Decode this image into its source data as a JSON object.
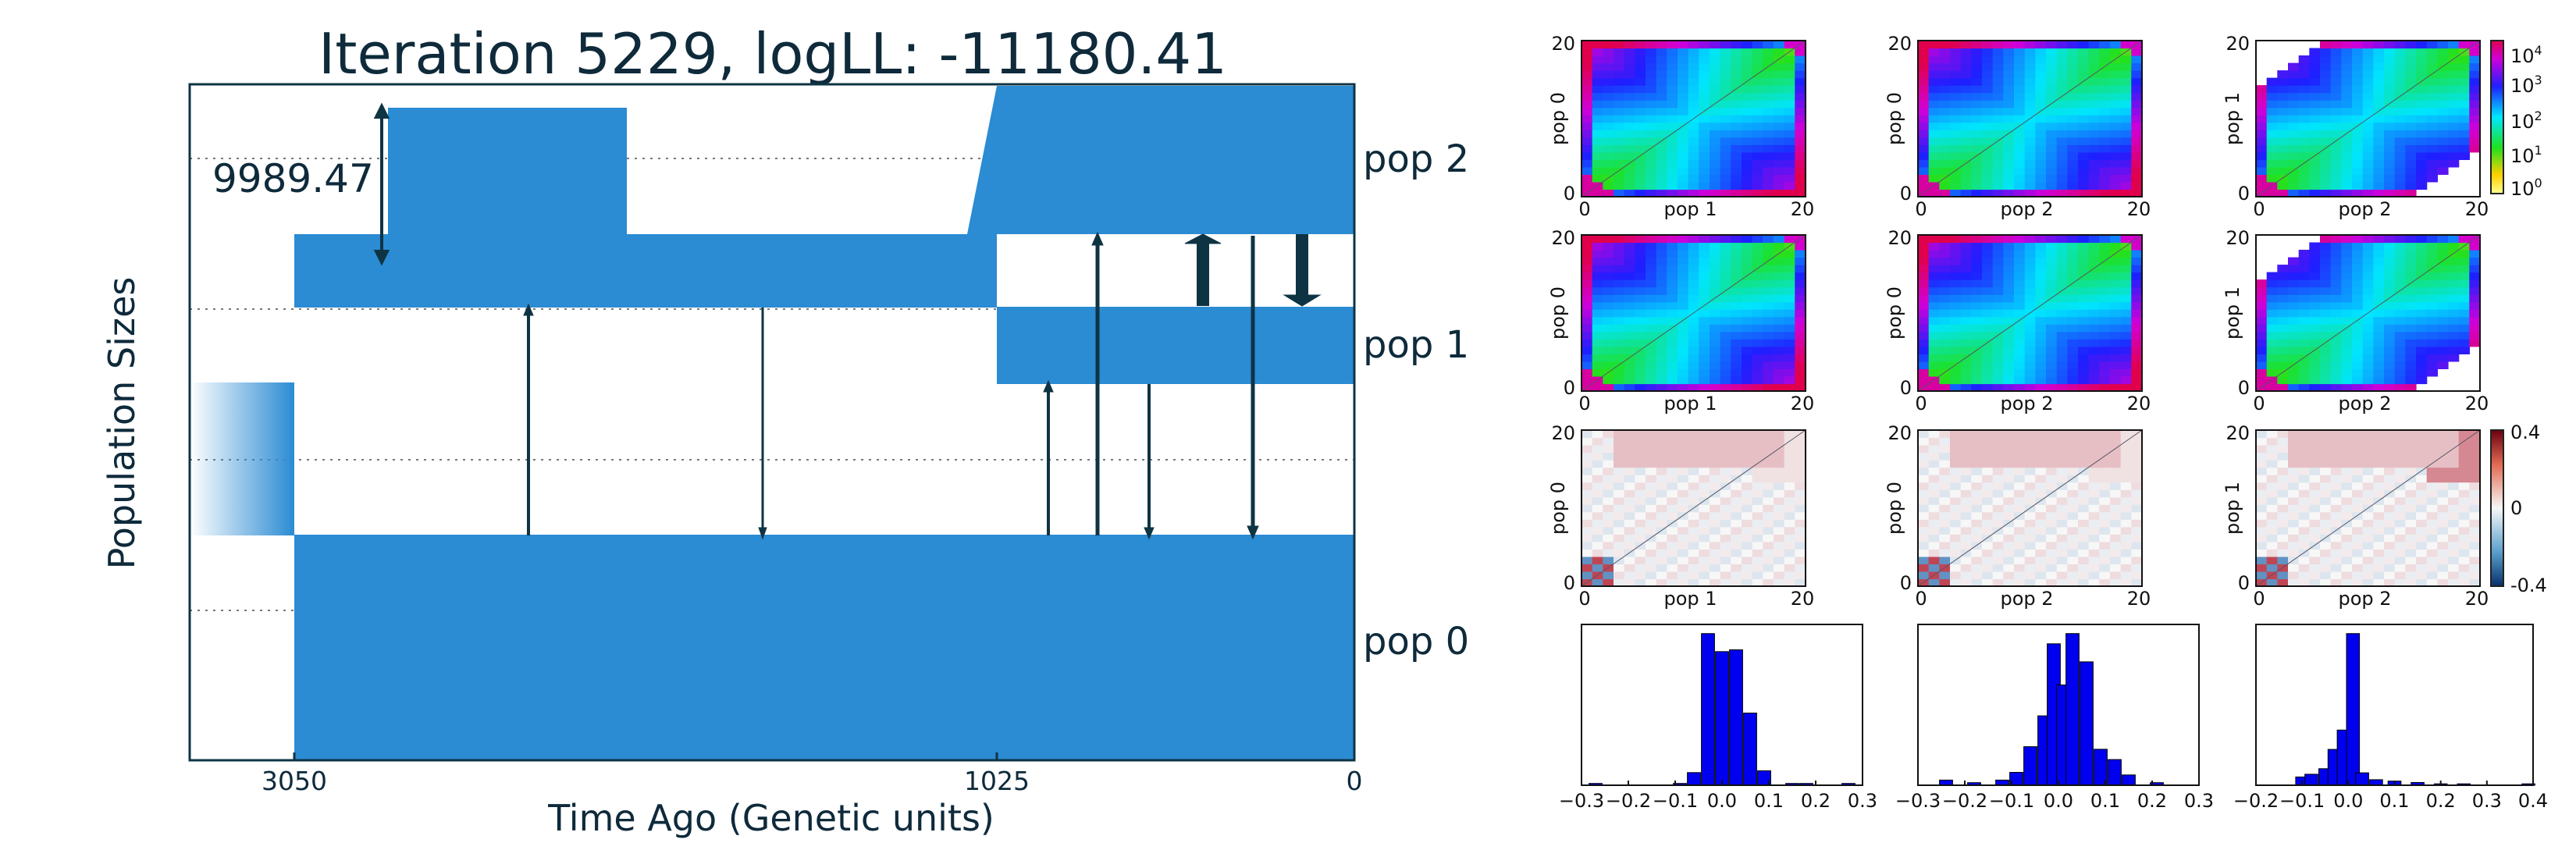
{
  "colors": {
    "population": "#2b8bd3",
    "migration_arrow": "#0e3444",
    "frame": "#0e3444",
    "histogram_bar": "#0000ee"
  },
  "chart_data": [
    {
      "type": "area",
      "title": "Iteration 5229, logLL:  -11180.41",
      "xlabel": "Time Ago (Genetic units)",
      "ylabel": "Population Sizes",
      "x_ticks": [
        "3050",
        "1025",
        "0"
      ],
      "x_direction": "decreasing",
      "size_annotation": "9989.47",
      "populations": [
        {
          "name": "pop 0"
        },
        {
          "name": "pop 1"
        },
        {
          "name": "pop 2"
        }
      ],
      "grid": "dotted horizontal lines"
    },
    {
      "type": "heatmap",
      "rows": [
        {
          "kind": "observed SFS (log color scale)",
          "panels": [
            {
              "ylabel": "pop 0",
              "xlabel": "pop 1"
            },
            {
              "ylabel": "pop 0",
              "xlabel": "pop 2"
            },
            {
              "ylabel": "pop 1",
              "xlabel": "pop 2"
            }
          ]
        },
        {
          "kind": "model SFS (log color scale)",
          "panels": [
            {
              "ylabel": "pop 0",
              "xlabel": "pop 1"
            },
            {
              "ylabel": "pop 0",
              "xlabel": "pop 2"
            },
            {
              "ylabel": "pop 1",
              "xlabel": "pop 2"
            }
          ]
        },
        {
          "kind": "residuals",
          "panels": [
            {
              "ylabel": "pop 0",
              "xlabel": "pop 1"
            },
            {
              "ylabel": "pop 0",
              "xlabel": "pop 2"
            },
            {
              "ylabel": "pop 1",
              "xlabel": "pop 2"
            }
          ]
        }
      ],
      "axis_ticks": [
        "0",
        "20"
      ],
      "log_colorbar_ticks": [
        "10",
        "10",
        "10",
        "10",
        "10"
      ],
      "log_colorbar_exponents": [
        "4",
        "3",
        "2",
        "1",
        "0"
      ],
      "residual_colorbar_ticks": [
        "0.4",
        "0",
        "-0.4"
      ]
    },
    {
      "type": "bar",
      "histograms": [
        {
          "x_ticks": [
            "−0.3",
            "−0.2",
            "−0.1",
            "0.0",
            "0.1",
            "0.2",
            "0.3"
          ],
          "xlim": [
            -0.3,
            0.3
          ],
          "bins": [
            -0.27,
            -0.09,
            -0.06,
            -0.03,
            0.0,
            0.03,
            0.06,
            0.09,
            0.15,
            0.18,
            0.27
          ],
          "values": [
            1,
            1,
            7,
            84,
            74,
            75,
            40,
            8,
            1,
            1,
            1
          ]
        },
        {
          "x_ticks": [
            "−0.3",
            "−0.2",
            "−0.1",
            "0.0",
            "0.1",
            "0.2",
            "0.3"
          ],
          "xlim": [
            -0.3,
            0.3
          ],
          "bins": [
            -0.24,
            -0.18,
            -0.12,
            -0.09,
            -0.06,
            -0.03,
            -0.01,
            0.01,
            0.03,
            0.06,
            0.09,
            0.12,
            0.15,
            0.21
          ],
          "values": [
            2,
            1,
            2,
            5,
            15,
            27,
            55,
            39,
            59,
            48,
            14,
            10,
            4,
            1
          ]
        },
        {
          "x_ticks": [
            "−0.2",
            "−0.1",
            "0.0",
            "0.1",
            "0.2",
            "0.3",
            "0.4"
          ],
          "xlim": [
            -0.2,
            0.4
          ],
          "bins": [
            -0.1,
            -0.08,
            -0.05,
            -0.03,
            -0.01,
            0.01,
            0.03,
            0.06,
            0.1,
            0.15,
            0.2,
            0.25,
            0.39
          ],
          "values": [
            6,
            8,
            12,
            26,
            40,
            110,
            9,
            4,
            3,
            2,
            1,
            1,
            1
          ]
        }
      ]
    }
  ]
}
